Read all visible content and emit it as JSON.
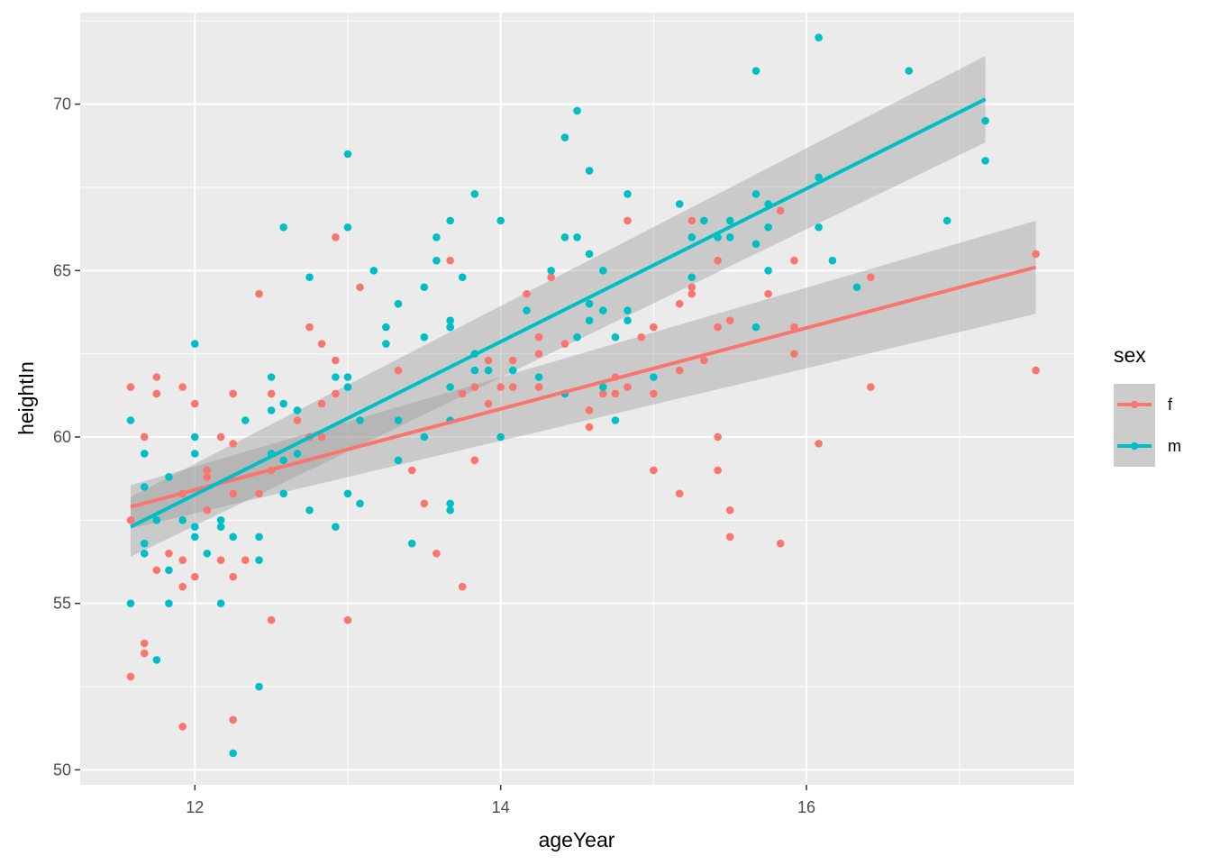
{
  "chart_data": {
    "type": "scatter",
    "title": "",
    "xlabel": "ageYear",
    "ylabel": "heightIn",
    "xlim": [
      11.25,
      17.75
    ],
    "ylim": [
      49.55,
      72.75
    ],
    "x_ticks": [
      12,
      14,
      16
    ],
    "x_tick_labels": [
      "12",
      "14",
      "16"
    ],
    "y_ticks": [
      50,
      55,
      60,
      65,
      70
    ],
    "y_tick_labels": [
      "50",
      "55",
      "60",
      "65",
      "70"
    ],
    "grid": true,
    "background": "#EBEBEB",
    "legend": {
      "title": "sex",
      "position": "right"
    },
    "series": [
      {
        "name": "f",
        "color": "#F8766D",
        "points": [
          [
            11.58,
            61.5
          ],
          [
            11.58,
            57.5
          ],
          [
            11.58,
            52.8
          ],
          [
            11.67,
            60.0
          ],
          [
            11.67,
            53.8
          ],
          [
            11.67,
            53.5
          ],
          [
            11.75,
            61.8
          ],
          [
            11.75,
            61.3
          ],
          [
            11.75,
            56.0
          ],
          [
            11.83,
            56.5
          ],
          [
            11.92,
            61.5
          ],
          [
            11.92,
            58.3
          ],
          [
            11.92,
            56.3
          ],
          [
            11.92,
            55.5
          ],
          [
            11.92,
            51.3
          ],
          [
            12.0,
            61.0
          ],
          [
            12.0,
            55.8
          ],
          [
            12.08,
            59.0
          ],
          [
            12.08,
            58.8
          ],
          [
            12.08,
            57.8
          ],
          [
            12.17,
            60.0
          ],
          [
            12.17,
            56.3
          ],
          [
            12.25,
            61.3
          ],
          [
            12.25,
            59.8
          ],
          [
            12.25,
            58.3
          ],
          [
            12.25,
            55.8
          ],
          [
            12.25,
            51.5
          ],
          [
            12.33,
            56.3
          ],
          [
            12.42,
            64.3
          ],
          [
            12.42,
            58.3
          ],
          [
            12.5,
            61.3
          ],
          [
            12.5,
            59.0
          ],
          [
            12.5,
            54.5
          ],
          [
            12.67,
            60.5
          ],
          [
            12.75,
            63.3
          ],
          [
            12.75,
            60.0
          ],
          [
            12.83,
            62.8
          ],
          [
            12.83,
            61.0
          ],
          [
            12.83,
            60.0
          ],
          [
            12.92,
            66.0
          ],
          [
            12.92,
            62.3
          ],
          [
            12.92,
            61.3
          ],
          [
            13.0,
            54.5
          ],
          [
            13.08,
            64.5
          ],
          [
            13.33,
            62.0
          ],
          [
            13.42,
            59.0
          ],
          [
            13.5,
            58.0
          ],
          [
            13.58,
            56.5
          ],
          [
            13.67,
            65.3
          ],
          [
            13.67,
            63.3
          ],
          [
            13.75,
            61.3
          ],
          [
            13.75,
            55.5
          ],
          [
            13.83,
            61.5
          ],
          [
            13.83,
            59.3
          ],
          [
            13.92,
            62.3
          ],
          [
            13.92,
            61.0
          ],
          [
            14.0,
            61.5
          ],
          [
            14.08,
            62.3
          ],
          [
            14.08,
            61.5
          ],
          [
            14.17,
            64.3
          ],
          [
            14.25,
            63.0
          ],
          [
            14.25,
            62.5
          ],
          [
            14.25,
            61.5
          ],
          [
            14.33,
            64.8
          ],
          [
            14.42,
            62.8
          ],
          [
            14.58,
            60.8
          ],
          [
            14.58,
            60.3
          ],
          [
            14.67,
            61.3
          ],
          [
            14.75,
            61.8
          ],
          [
            14.75,
            61.3
          ],
          [
            14.83,
            66.5
          ],
          [
            14.83,
            61.5
          ],
          [
            14.92,
            63.0
          ],
          [
            15.0,
            63.3
          ],
          [
            15.0,
            61.3
          ],
          [
            15.0,
            59.0
          ],
          [
            15.17,
            64.0
          ],
          [
            15.17,
            62.0
          ],
          [
            15.17,
            58.3
          ],
          [
            15.25,
            66.5
          ],
          [
            15.25,
            64.5
          ],
          [
            15.25,
            64.3
          ],
          [
            15.33,
            62.3
          ],
          [
            15.42,
            65.3
          ],
          [
            15.42,
            63.3
          ],
          [
            15.42,
            60.0
          ],
          [
            15.42,
            59.0
          ],
          [
            15.5,
            63.5
          ],
          [
            15.5,
            57.8
          ],
          [
            15.5,
            57.0
          ],
          [
            15.75,
            64.3
          ],
          [
            15.83,
            66.8
          ],
          [
            15.83,
            56.8
          ],
          [
            15.92,
            65.3
          ],
          [
            15.92,
            63.3
          ],
          [
            15.92,
            62.5
          ],
          [
            16.08,
            59.8
          ],
          [
            16.42,
            64.8
          ],
          [
            16.42,
            61.5
          ],
          [
            17.5,
            65.5
          ],
          [
            17.5,
            62.0
          ]
        ],
        "fit": {
          "x": [
            11.58,
            17.5
          ],
          "y": [
            57.9,
            65.1
          ],
          "ci_low": [
            57.25,
            63.7
          ],
          "ci_high": [
            58.55,
            66.5
          ]
        }
      },
      {
        "name": "m",
        "color": "#00BFC4",
        "points": [
          [
            11.58,
            60.5
          ],
          [
            11.58,
            55.0
          ],
          [
            11.67,
            59.5
          ],
          [
            11.67,
            58.5
          ],
          [
            11.67,
            56.8
          ],
          [
            11.67,
            56.5
          ],
          [
            11.75,
            57.5
          ],
          [
            11.75,
            53.3
          ],
          [
            11.83,
            58.8
          ],
          [
            11.83,
            56.0
          ],
          [
            11.83,
            55.0
          ],
          [
            11.92,
            57.5
          ],
          [
            12.0,
            62.8
          ],
          [
            12.0,
            60.0
          ],
          [
            12.0,
            59.5
          ],
          [
            12.0,
            57.3
          ],
          [
            12.0,
            57.0
          ],
          [
            12.08,
            56.5
          ],
          [
            12.17,
            57.5
          ],
          [
            12.17,
            57.3
          ],
          [
            12.17,
            55.0
          ],
          [
            12.25,
            57.0
          ],
          [
            12.25,
            50.5
          ],
          [
            12.33,
            60.5
          ],
          [
            12.42,
            57.0
          ],
          [
            12.42,
            56.3
          ],
          [
            12.42,
            52.5
          ],
          [
            12.5,
            61.8
          ],
          [
            12.5,
            60.8
          ],
          [
            12.5,
            59.5
          ],
          [
            12.58,
            66.3
          ],
          [
            12.58,
            61.0
          ],
          [
            12.58,
            59.3
          ],
          [
            12.58,
            58.3
          ],
          [
            12.67,
            60.8
          ],
          [
            12.67,
            59.5
          ],
          [
            12.75,
            64.8
          ],
          [
            12.75,
            57.8
          ],
          [
            12.92,
            61.8
          ],
          [
            12.92,
            57.3
          ],
          [
            13.0,
            68.5
          ],
          [
            13.0,
            66.3
          ],
          [
            13.0,
            61.8
          ],
          [
            13.0,
            61.5
          ],
          [
            13.0,
            58.3
          ],
          [
            13.08,
            60.5
          ],
          [
            13.08,
            58.0
          ],
          [
            13.17,
            65.0
          ],
          [
            13.25,
            63.3
          ],
          [
            13.25,
            62.8
          ],
          [
            13.33,
            64.0
          ],
          [
            13.33,
            60.5
          ],
          [
            13.33,
            59.3
          ],
          [
            13.42,
            56.8
          ],
          [
            13.5,
            64.5
          ],
          [
            13.5,
            63.0
          ],
          [
            13.5,
            60.0
          ],
          [
            13.58,
            66.0
          ],
          [
            13.58,
            65.3
          ],
          [
            13.67,
            66.5
          ],
          [
            13.67,
            63.5
          ],
          [
            13.67,
            63.3
          ],
          [
            13.67,
            61.5
          ],
          [
            13.67,
            60.5
          ],
          [
            13.67,
            58.0
          ],
          [
            13.67,
            57.8
          ],
          [
            13.75,
            64.8
          ],
          [
            13.83,
            67.3
          ],
          [
            13.83,
            62.5
          ],
          [
            13.83,
            62.0
          ],
          [
            13.92,
            62.0
          ],
          [
            14.0,
            66.5
          ],
          [
            14.0,
            60.0
          ],
          [
            14.08,
            62.0
          ],
          [
            14.17,
            63.8
          ],
          [
            14.25,
            61.8
          ],
          [
            14.33,
            65.0
          ],
          [
            14.42,
            69.0
          ],
          [
            14.42,
            66.0
          ],
          [
            14.42,
            61.3
          ],
          [
            14.5,
            69.8
          ],
          [
            14.5,
            66.0
          ],
          [
            14.5,
            63.0
          ],
          [
            14.58,
            68.0
          ],
          [
            14.58,
            65.5
          ],
          [
            14.58,
            64.0
          ],
          [
            14.58,
            63.5
          ],
          [
            14.67,
            65.0
          ],
          [
            14.67,
            63.8
          ],
          [
            14.67,
            61.5
          ],
          [
            14.75,
            63.0
          ],
          [
            14.75,
            60.5
          ],
          [
            14.83,
            67.3
          ],
          [
            14.83,
            63.8
          ],
          [
            14.83,
            63.5
          ],
          [
            15.0,
            61.8
          ],
          [
            15.17,
            67.0
          ],
          [
            15.25,
            66.0
          ],
          [
            15.25,
            64.8
          ],
          [
            15.33,
            66.5
          ],
          [
            15.42,
            66.0
          ],
          [
            15.5,
            66.5
          ],
          [
            15.5,
            66.0
          ],
          [
            15.67,
            71.0
          ],
          [
            15.67,
            67.3
          ],
          [
            15.67,
            65.8
          ],
          [
            15.67,
            63.3
          ],
          [
            15.75,
            67.0
          ],
          [
            15.75,
            66.3
          ],
          [
            15.75,
            65.0
          ],
          [
            16.08,
            72.0
          ],
          [
            16.08,
            67.8
          ],
          [
            16.08,
            66.3
          ],
          [
            16.17,
            65.3
          ],
          [
            16.33,
            64.5
          ],
          [
            16.67,
            71.0
          ],
          [
            16.92,
            66.5
          ],
          [
            17.17,
            69.5
          ],
          [
            17.17,
            68.3
          ]
        ],
        "fit": {
          "x": [
            11.58,
            17.17
          ],
          "y": [
            57.3,
            70.15
          ],
          "ci_low": [
            56.4,
            68.85
          ],
          "ci_high": [
            58.2,
            71.45
          ]
        }
      }
    ]
  }
}
